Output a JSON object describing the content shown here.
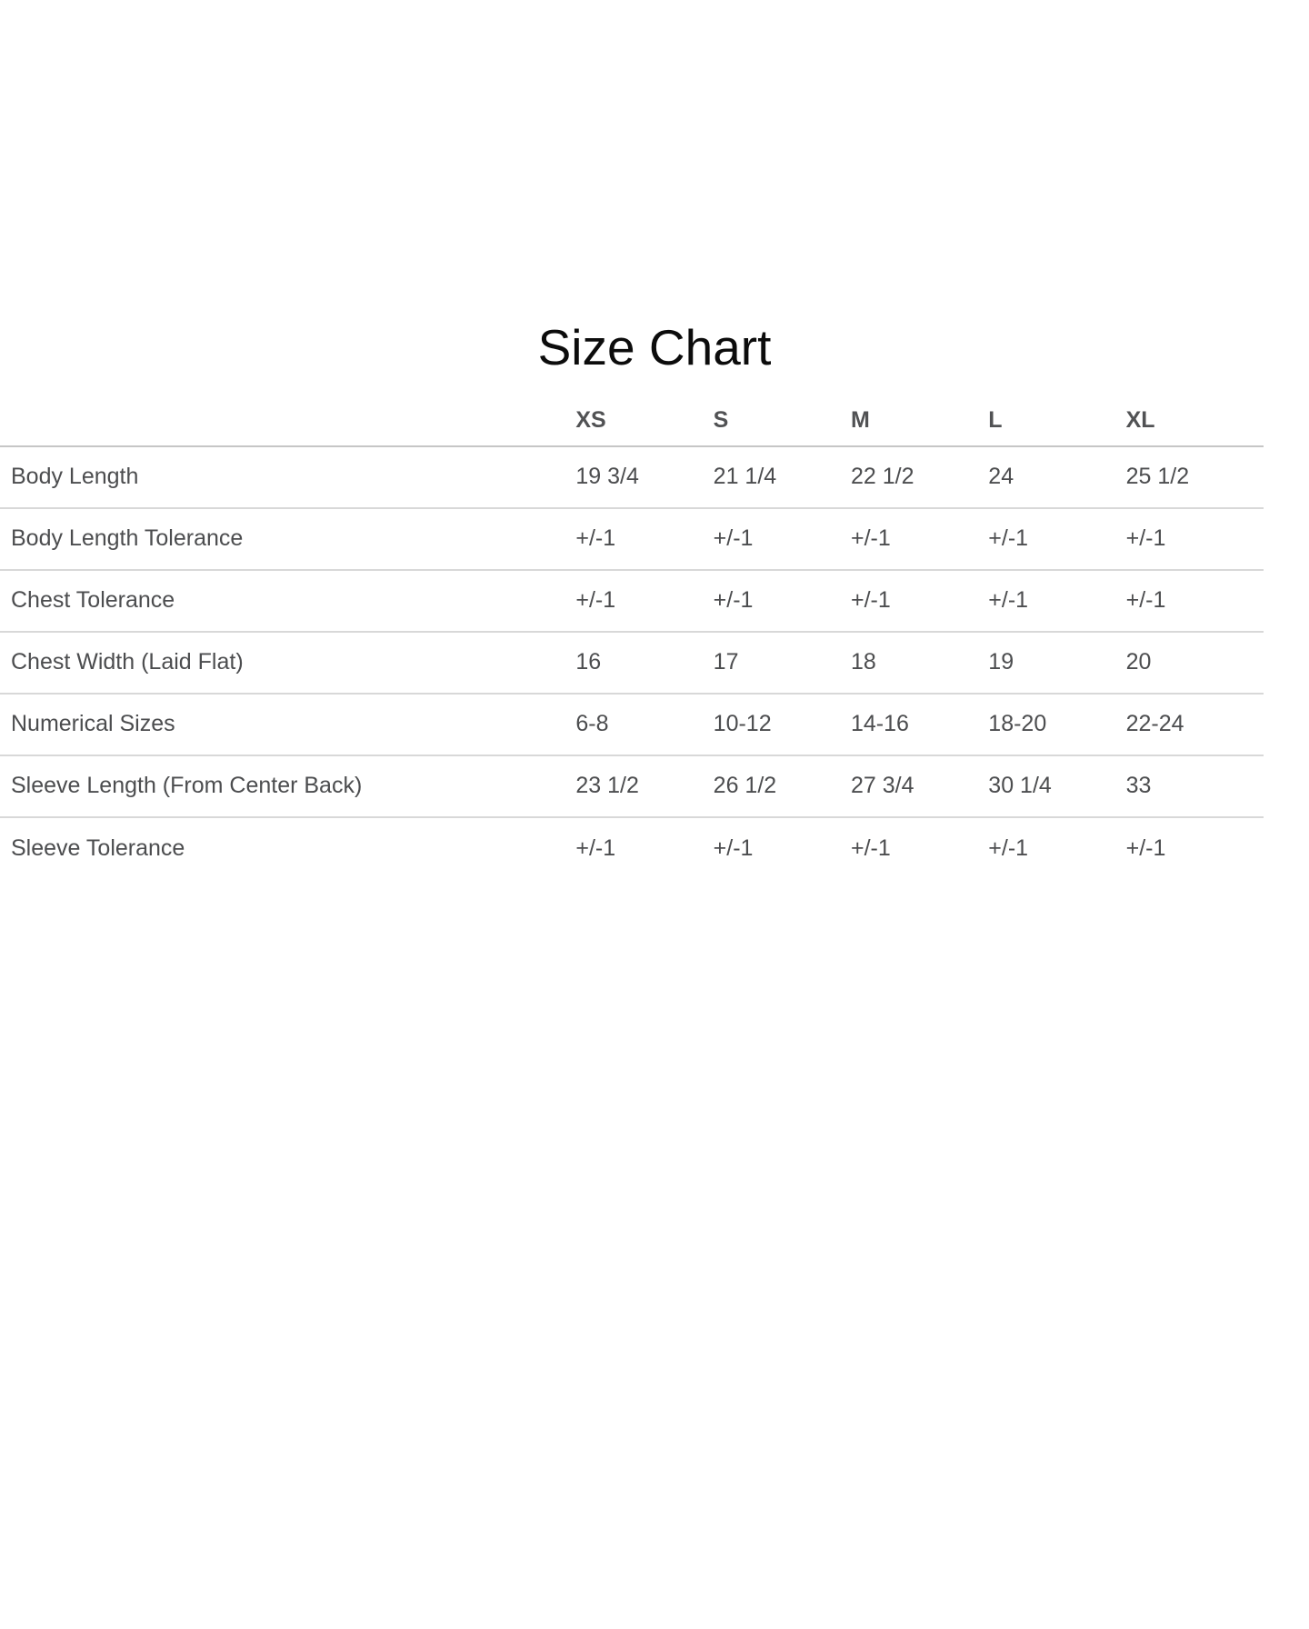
{
  "title": "Size Chart",
  "chart_data": {
    "type": "table",
    "title": "Size Chart",
    "columns": [
      "XS",
      "S",
      "M",
      "L",
      "XL"
    ],
    "rows": [
      {
        "label": "Body Length",
        "values": [
          "19 3/4",
          "21 1/4",
          "22 1/2",
          "24",
          "25 1/2"
        ]
      },
      {
        "label": "Body Length Tolerance",
        "values": [
          "+/-1",
          "+/-1",
          "+/-1",
          "+/-1",
          "+/-1"
        ]
      },
      {
        "label": "Chest Tolerance",
        "values": [
          "+/-1",
          "+/-1",
          "+/-1",
          "+/-1",
          "+/-1"
        ]
      },
      {
        "label": "Chest Width (Laid Flat)",
        "values": [
          "16",
          "17",
          "18",
          "19",
          "20"
        ]
      },
      {
        "label": "Numerical Sizes",
        "values": [
          "6-8",
          "10-12",
          "14-16",
          "18-20",
          "22-24"
        ]
      },
      {
        "label": "Sleeve Length (From Center Back)",
        "values": [
          "23 1/2",
          "26 1/2",
          "27 3/4",
          "30 1/4",
          "33"
        ]
      },
      {
        "label": "Sleeve Tolerance",
        "values": [
          "+/-1",
          "+/-1",
          "+/-1",
          "+/-1",
          "+/-1"
        ]
      }
    ],
    "layout": {
      "legend": "none",
      "grid": "horizontal-row-separators",
      "header_style": "bold",
      "last_row_border": false
    }
  },
  "colors": {
    "title": "#0c0c0c",
    "text": "#4c4d4f",
    "header_text": "#515254",
    "header_border": "#c6c6c6",
    "row_border": "#d8d8d8",
    "background": "#ffffff"
  }
}
